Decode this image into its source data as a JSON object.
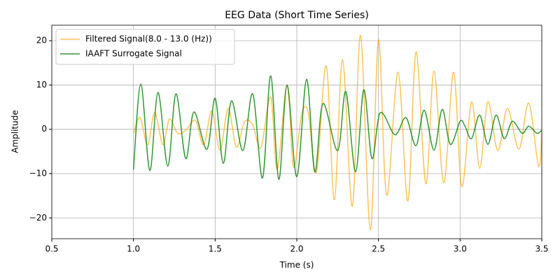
{
  "chart_data": {
    "type": "line",
    "title": "EEG Data (Short Time Series)",
    "x_label": "Time (s)",
    "y_label": "Amplitude",
    "xlim": [
      0.5,
      3.5
    ],
    "ylim": [
      -24.7,
      23.5
    ],
    "xticks": [
      0.5,
      {
        "value": 1,
        "label": "1.0"
      },
      1.5,
      {
        "value": 2,
        "label": "2.0"
      },
      2.5,
      {
        "value": 3,
        "label": "3.0"
      },
      3.5
    ],
    "yticks": [
      {
        "value": -20,
        "label": "−20"
      },
      {
        "value": -10,
        "label": "−10"
      },
      0,
      10,
      20
    ],
    "grid": true,
    "legend": "upper left",
    "series": [
      {
        "name": "Filtered Signal(8.0 - 13.0 (Hz))",
        "color": "#ffa500",
        "opacity": 0.65,
        "x": [
          1.0,
          1.04,
          1.087,
          1.13,
          1.18,
          1.22,
          1.27,
          1.32,
          1.38,
          1.43,
          1.48,
          1.53,
          1.58,
          1.63,
          1.68,
          1.73,
          1.78,
          1.84,
          1.88,
          1.94,
          1.98,
          2.03,
          2.07,
          2.12,
          2.18,
          2.23,
          2.28,
          2.34,
          2.39,
          2.45,
          2.5,
          2.55,
          2.62,
          2.68,
          2.73,
          2.79,
          2.84,
          2.9,
          2.96,
          3.01,
          3.07,
          3.12,
          3.17,
          3.23,
          3.29,
          3.36,
          3.42,
          3.48,
          3.5
        ],
        "values": [
          -1,
          2.6,
          -3.5,
          3.8,
          -3.5,
          2.3,
          -0.9,
          -0.2,
          2,
          -3.5,
          4.2,
          -4.8,
          4.7,
          -4,
          1.7,
          1.0,
          -4.2,
          7.3,
          -9,
          10,
          -8.5,
          3.4,
          3.8,
          -9.7,
          14.3,
          -15.9,
          15.7,
          -17.4,
          21.2,
          -22.7,
          20.2,
          -14.9,
          12.9,
          -16.2,
          17.5,
          -12.3,
          13.2,
          -12.1,
          12.9,
          -12.9,
          6.2,
          -8.8,
          6.2,
          -4.8,
          4.7,
          -4.5,
          5.9,
          -8.3,
          -0.9
        ]
      },
      {
        "name": "IAAFT Surrogate Signal",
        "color": "#008000",
        "opacity": 0.8,
        "x": [
          1.0,
          1.045,
          1.1,
          1.15,
          1.21,
          1.26,
          1.32,
          1.37,
          1.45,
          1.5,
          1.55,
          1.6,
          1.67,
          1.73,
          1.79,
          1.84,
          1.89,
          1.94,
          2.0,
          2.06,
          2.11,
          2.16,
          2.25,
          2.3,
          2.36,
          2.41,
          2.46,
          2.51,
          2.59,
          2.62,
          2.67,
          2.73,
          2.78,
          2.84,
          2.89,
          2.94,
          3.0,
          3.03,
          3.07,
          3.12,
          3.17,
          3.22,
          3.27,
          3.32,
          3.38,
          3.42,
          3.47,
          3.5
        ],
        "values": [
          -9.1,
          10.2,
          -9.3,
          8.3,
          -8.3,
          8.0,
          -6.6,
          3.9,
          -4.5,
          7.0,
          -7.7,
          6.4,
          -4.8,
          8.0,
          -11,
          12.1,
          -11.3,
          10.0,
          -10.7,
          11.3,
          -9.6,
          5.8,
          -4.8,
          8.5,
          -9.6,
          8.9,
          -6.6,
          3.7,
          -0.9,
          -0.6,
          2.6,
          -3.7,
          4.3,
          -4.7,
          4.5,
          -3.4,
          1.8,
          0.7,
          -2.1,
          3.2,
          -3.4,
          3.2,
          -2.1,
          1.8,
          -0.9,
          0.7,
          -0.9,
          -0.2
        ]
      }
    ]
  }
}
